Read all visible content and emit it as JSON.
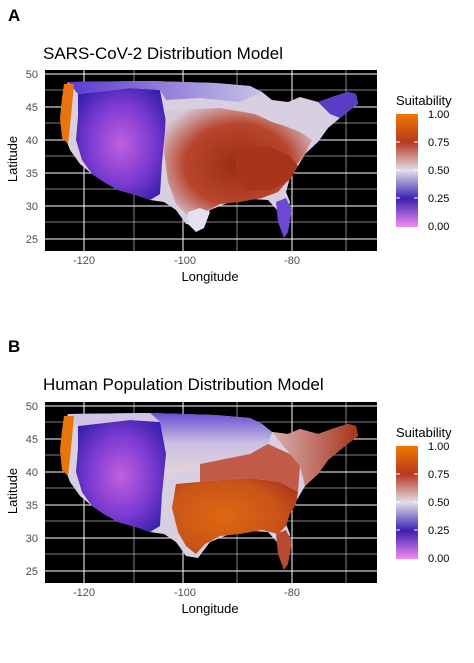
{
  "panels": [
    {
      "letter": "A",
      "title": "SARS-CoV-2 Distribution Model",
      "xlabel": "Longitude",
      "ylabel": "Latitude",
      "x_ticks": [
        "-120",
        "-100",
        "-80"
      ],
      "y_ticks": [
        "50",
        "45",
        "40",
        "35",
        "30",
        "25"
      ],
      "legend": {
        "title": "Suitability",
        "labels": [
          "1.00",
          "0.75",
          "0.50",
          "0.25",
          "0.00"
        ]
      },
      "regions": {
        "west_coast": "orange",
        "mountain_west": "purple",
        "plains": "red",
        "southeast": "red",
        "northeast": "light-purple"
      }
    },
    {
      "letter": "B",
      "title": "Human Population Distribution Model",
      "xlabel": "Longitude",
      "ylabel": "Latitude",
      "x_ticks": [
        "-120",
        "-100",
        "-80"
      ],
      "y_ticks": [
        "50",
        "45",
        "40",
        "35",
        "30",
        "25"
      ],
      "legend": {
        "title": "Suitability",
        "labels": [
          "1.00",
          "0.75",
          "0.50",
          "0.25",
          "0.00"
        ]
      },
      "regions": {
        "west_coast": "orange",
        "mountain_west": "purple",
        "plains": "light-purple",
        "southeast": "orange",
        "northeast": "light-red"
      }
    }
  ],
  "colors": {
    "background": "#000000",
    "grid": "#ffffff",
    "scale_high": "#e66a00",
    "scale_mid_high": "#b23a24",
    "scale_mid": "#d9d6e6",
    "scale_mid_low": "#3b21b0",
    "scale_low": "#ee88ee"
  }
}
